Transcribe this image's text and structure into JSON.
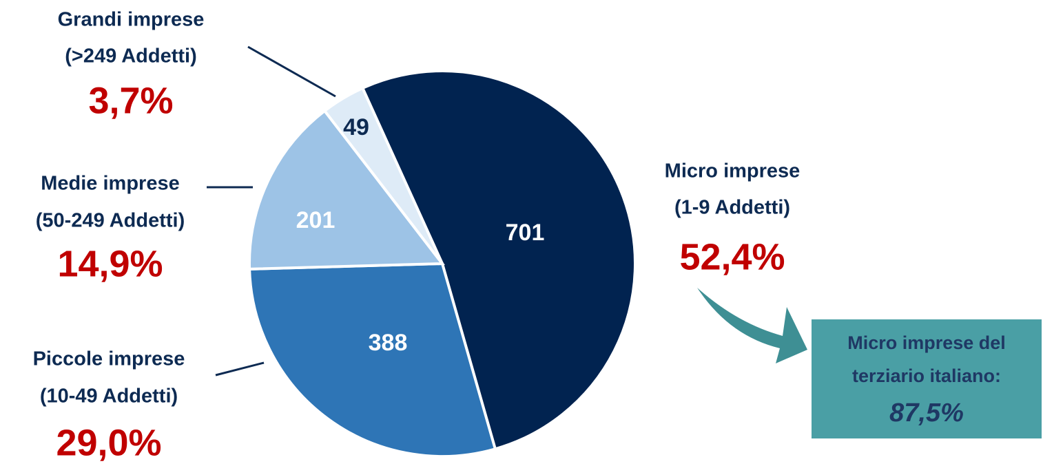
{
  "chart_data": {
    "type": "pie",
    "categories": [
      "Micro imprese",
      "Piccole imprese",
      "Medie imprese",
      "Grandi imprese"
    ],
    "category_notes": [
      "(1-9 Addetti)",
      "(10-49 Addetti)",
      "(50-249 Addetti)",
      "(>249 Addetti)"
    ],
    "values": [
      701,
      388,
      201,
      49
    ],
    "share_labels": [
      "52,4%",
      "29,0%",
      "14,9%",
      "3,7%"
    ],
    "colors": [
      "#012350",
      "#2e75b6",
      "#9dc3e6",
      "#deebf7"
    ],
    "value_label_colors": [
      "#ffffff",
      "#ffffff",
      "#ffffff",
      "#0d2a52"
    ],
    "callout": {
      "text_lines": [
        "Micro imprese del",
        "terziario italiano:"
      ],
      "value_label": "87,5%",
      "color": "#4a9fa5"
    }
  }
}
